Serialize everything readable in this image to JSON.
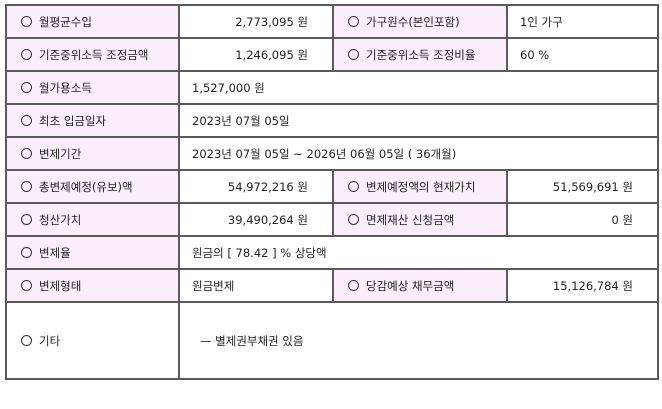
{
  "rows": [
    {
      "label": "월평균수입",
      "value": "2,773,095 원",
      "label2": "가구원수(본인포함)",
      "value2": "1인 가구"
    },
    {
      "label": "기준중위소득 조정금액",
      "value": "1,246,095 원",
      "label2": "기준중위소득 조정비율",
      "value2": "60 %"
    },
    {
      "label": "월가용소득",
      "value": "1,527,000 원"
    },
    {
      "label": "최초 입금일자",
      "value": "2023년 07월 05일"
    },
    {
      "label": "변제기간",
      "value": "2023년 07월 05일 ~ 2026년 06월 05일 ( 36개월)"
    },
    {
      "label": "총변제예정(유보)액",
      "value": "54,972,216 원",
      "label2": "변제예정액의 현재가치",
      "value2": "51,569,691 원"
    },
    {
      "label": "청산가치",
      "value": "39,490,264 원",
      "label2": "면제재산 신청금액",
      "value2": "0 원"
    },
    {
      "label": "변제율",
      "value": "원금의 [ 78.42 ] % 상당액"
    },
    {
      "label": "변제형태",
      "value": "원금변제",
      "label2": "당감예상 채무금액",
      "value2": "15,126,784 원"
    },
    {
      "label": "기타",
      "value": "— 별제권부채권 있음"
    }
  ],
  "colors": {
    "label_bg": "#fbeefb",
    "border": "#5a5a5a"
  }
}
